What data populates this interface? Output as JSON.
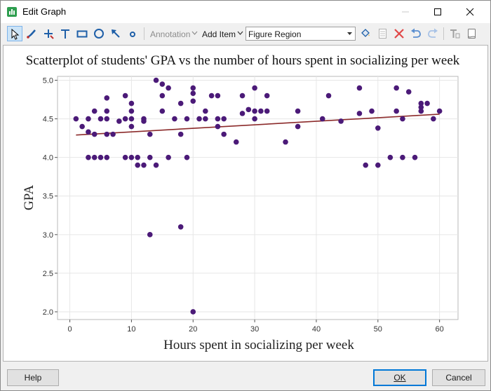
{
  "window": {
    "title": "Edit Graph",
    "buttons": [
      "minimize",
      "maximize",
      "close"
    ]
  },
  "toolbar": {
    "tools": [
      "select-icon",
      "pen-icon",
      "crosshair-icon",
      "text-icon",
      "rectangle-icon",
      "ellipse-icon",
      "arrow-icon",
      "dot-icon"
    ],
    "annotation_label": "Annotation",
    "add_item_label": "Add Item",
    "region_value": "Figure Region",
    "right_icons": [
      "paint-bucket-icon",
      "properties-icon",
      "delete-icon",
      "undo-icon",
      "redo-icon",
      "font-icon",
      "page-icon"
    ]
  },
  "footer": {
    "help_label": "Help",
    "ok_label": "OK",
    "cancel_label": "Cancel"
  },
  "colors": {
    "point": "#4b1a78",
    "trend_line": "#8b2a2a",
    "grid": "#e6e6e6"
  },
  "chart_data": {
    "type": "scatter",
    "title": "Scatterplot of students' GPA vs the number of hours spent in socializing per week",
    "xlabel": "Hours spent in socializing per week",
    "ylabel": "GPA",
    "xlim": [
      -2,
      63
    ],
    "ylim": [
      1.9,
      5.05
    ],
    "xticks": [
      0,
      10,
      20,
      30,
      40,
      50,
      60
    ],
    "yticks": [
      2.0,
      2.5,
      3.0,
      3.5,
      4.0,
      4.5,
      5.0
    ],
    "grid": true,
    "legend": "none",
    "points": [
      [
        1,
        4.5
      ],
      [
        2,
        4.4
      ],
      [
        3,
        4.5
      ],
      [
        3,
        4.33
      ],
      [
        3,
        4.0
      ],
      [
        4,
        4.6
      ],
      [
        4,
        4.3
      ],
      [
        4,
        4.0
      ],
      [
        5,
        4.5
      ],
      [
        5,
        4.0
      ],
      [
        6,
        4.77
      ],
      [
        6,
        4.6
      ],
      [
        6,
        4.5
      ],
      [
        6,
        4.3
      ],
      [
        6,
        4.0
      ],
      [
        7,
        4.3
      ],
      [
        8,
        4.47
      ],
      [
        9,
        4.8
      ],
      [
        9,
        4.5
      ],
      [
        9,
        4.0
      ],
      [
        10,
        4.7
      ],
      [
        10,
        4.6
      ],
      [
        10,
        4.5
      ],
      [
        10,
        4.4
      ],
      [
        10,
        4.0
      ],
      [
        11,
        4.0
      ],
      [
        11,
        3.9
      ],
      [
        12,
        4.5
      ],
      [
        12,
        4.47
      ],
      [
        12,
        3.9
      ],
      [
        13,
        4.0
      ],
      [
        13,
        4.3
      ],
      [
        13,
        3.0
      ],
      [
        14,
        5.0
      ],
      [
        14,
        3.9
      ],
      [
        15,
        4.95
      ],
      [
        15,
        4.8
      ],
      [
        15,
        4.6
      ],
      [
        16,
        4.9
      ],
      [
        16,
        4.0
      ],
      [
        17,
        4.5
      ],
      [
        18,
        4.7
      ],
      [
        18,
        4.3
      ],
      [
        18,
        3.1
      ],
      [
        19,
        4.5
      ],
      [
        19,
        4.0
      ],
      [
        20,
        4.9
      ],
      [
        20,
        4.83
      ],
      [
        20,
        4.73
      ],
      [
        20,
        2.0
      ],
      [
        21,
        4.5
      ],
      [
        22,
        4.6
      ],
      [
        22,
        4.5
      ],
      [
        23,
        4.8
      ],
      [
        24,
        4.8
      ],
      [
        24,
        4.5
      ],
      [
        24,
        4.4
      ],
      [
        25,
        4.5
      ],
      [
        25,
        4.3
      ],
      [
        27,
        4.2
      ],
      [
        28,
        4.8
      ],
      [
        28,
        4.57
      ],
      [
        29,
        4.62
      ],
      [
        30,
        4.9
      ],
      [
        30,
        4.6
      ],
      [
        30,
        4.5
      ],
      [
        31,
        4.6
      ],
      [
        32,
        4.8
      ],
      [
        32,
        4.6
      ],
      [
        35,
        4.2
      ],
      [
        37,
        4.6
      ],
      [
        37,
        4.4
      ],
      [
        41,
        4.5
      ],
      [
        42,
        4.8
      ],
      [
        44,
        4.47
      ],
      [
        47,
        4.9
      ],
      [
        47,
        4.57
      ],
      [
        48,
        3.9
      ],
      [
        49,
        4.6
      ],
      [
        50,
        4.38
      ],
      [
        50,
        3.9
      ],
      [
        52,
        4.0
      ],
      [
        53,
        4.9
      ],
      [
        53,
        4.6
      ],
      [
        54,
        4.5
      ],
      [
        54,
        4.0
      ],
      [
        55,
        4.85
      ],
      [
        56,
        4.0
      ],
      [
        57,
        4.7
      ],
      [
        57,
        4.65
      ],
      [
        57,
        4.6
      ],
      [
        58,
        4.7
      ],
      [
        59,
        4.5
      ],
      [
        60,
        4.6
      ]
    ],
    "trend_line": {
      "from": [
        1,
        4.29
      ],
      "to": [
        60,
        4.56
      ]
    }
  }
}
